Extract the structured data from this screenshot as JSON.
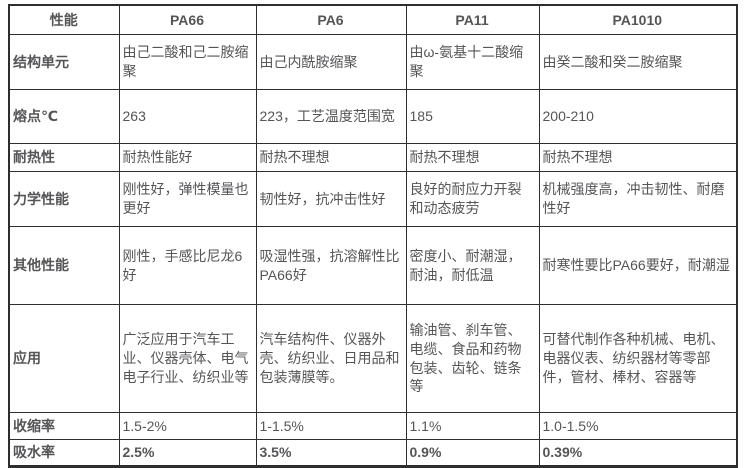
{
  "colors": {
    "text": "#555558",
    "border": "#2e2e2e",
    "background": "#ffffff"
  },
  "table": {
    "columns": [
      "性能",
      "PA66",
      "PA6",
      "PA11",
      "PA1010"
    ],
    "rows": [
      {
        "label": "结构单元",
        "cells": [
          "由己二酸和己二胺缩聚",
          "由己内酰胺缩聚",
          "由ω-氨基十二酸缩聚",
          "由癸二酸和癸二胺缩聚"
        ]
      },
      {
        "label": "熔点℃",
        "cells": [
          "263",
          "223，工艺温度范围宽",
          "185",
          "200-210"
        ]
      },
      {
        "label": "耐热性",
        "cells": [
          "耐热性能好",
          "耐热不理想",
          "耐热不理想",
          "耐热不理想"
        ]
      },
      {
        "label": "力学性能",
        "cells": [
          "刚性好，弹性模量也更好",
          "韧性好，抗冲击性好",
          "良好的耐应力开裂和动态疲劳",
          "机械强度高，冲击韧性、耐磨性好"
        ]
      },
      {
        "label": "其他性能",
        "cells": [
          "刚性，手感比尼龙6好",
          "吸湿性强，抗溶解性比PA66好",
          "密度小、耐潮湿，耐油，耐低温",
          "耐寒性要比PA66要好，耐潮湿"
        ]
      },
      {
        "label": "应用",
        "cells": [
          "广泛应用于汽车工业、仪器壳体、电气电子行业、纺织业等",
          "汽车结构件、仪器外壳、纺织业、日用品和包装薄膜等。",
          "输油管、刹车管、电缆、食品和药物包装、齿轮、链条等",
          "可替代制作各种机械、电机、电器仪表、纺织器材等零部件，管材、棒材、容器等"
        ]
      },
      {
        "label": "收缩率",
        "cells": [
          "1.5-2%",
          "1-1.5%",
          "1.1%",
          "1.0-1.5%"
        ]
      },
      {
        "label": "吸水率",
        "cells": [
          "2.5%",
          "3.5%",
          "0.9%",
          "0.39%"
        ]
      }
    ]
  }
}
